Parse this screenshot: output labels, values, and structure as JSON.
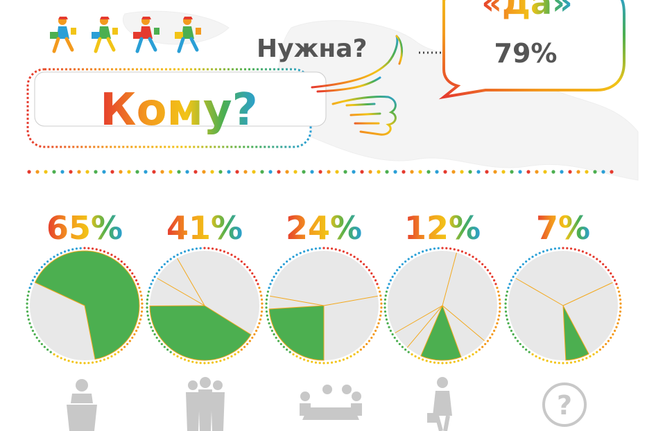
{
  "header": {
    "question_main": "Кому?",
    "question_need": "Нужна?",
    "answer_word": "«Да»",
    "answer_percent": "79%"
  },
  "colors": {
    "red": "#e53a2e",
    "orange": "#f39a1e",
    "yellow": "#f2c417",
    "green": "#4caf50",
    "blue": "#2a9fd6",
    "gray_icon": "#c4c4c4",
    "pie_gray": "#e8e8e8",
    "pie_fill": "#4caf50",
    "pie_line": "#f3a81c"
  },
  "icons": [
    "postman-icon",
    "postman-icon",
    "postman-icon",
    "postman-icon",
    "thumbs-up-hand-icon",
    "speaker-podium-icon",
    "group-icon",
    "meeting-table-icon",
    "businessman-briefcase-icon",
    "question-bubble-icon"
  ],
  "chart_data": {
    "type": "pie",
    "categories": [
      "speaker-podium-icon",
      "group-icon",
      "meeting-table-icon",
      "businessman-briefcase-icon",
      "question-bubble-icon"
    ],
    "values": [
      65,
      41,
      24,
      12,
      7
    ],
    "labels": [
      "65%",
      "41%",
      "24%",
      "12%",
      "7%"
    ],
    "series": [
      {
        "values": [
          65,
          41,
          24,
          12,
          7
        ]
      }
    ]
  }
}
